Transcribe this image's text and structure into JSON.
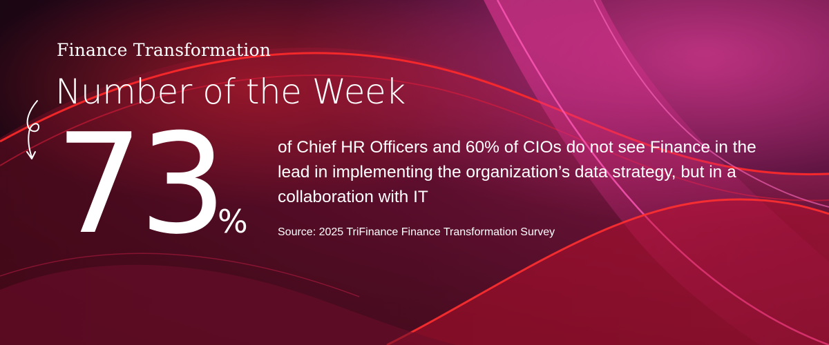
{
  "banner": {
    "kicker": "Finance Transformation",
    "headline": "Number of the Week",
    "number": "73",
    "unit": "%",
    "statement": "of Chief HR Officers and 60% of CIOs do not see Finance in the lead in implementing the organization’s data strategy, but in a collaboration with IT",
    "source": "Source: 2025 TriFinance Finance Transformation Survey"
  },
  "icons": {
    "arrow": "curly-down-arrow-icon"
  },
  "colors": {
    "background_dark": "#1a0612",
    "accent_red": "#d81b2a",
    "accent_magenta": "#e0308f",
    "text": "#ffffff"
  }
}
